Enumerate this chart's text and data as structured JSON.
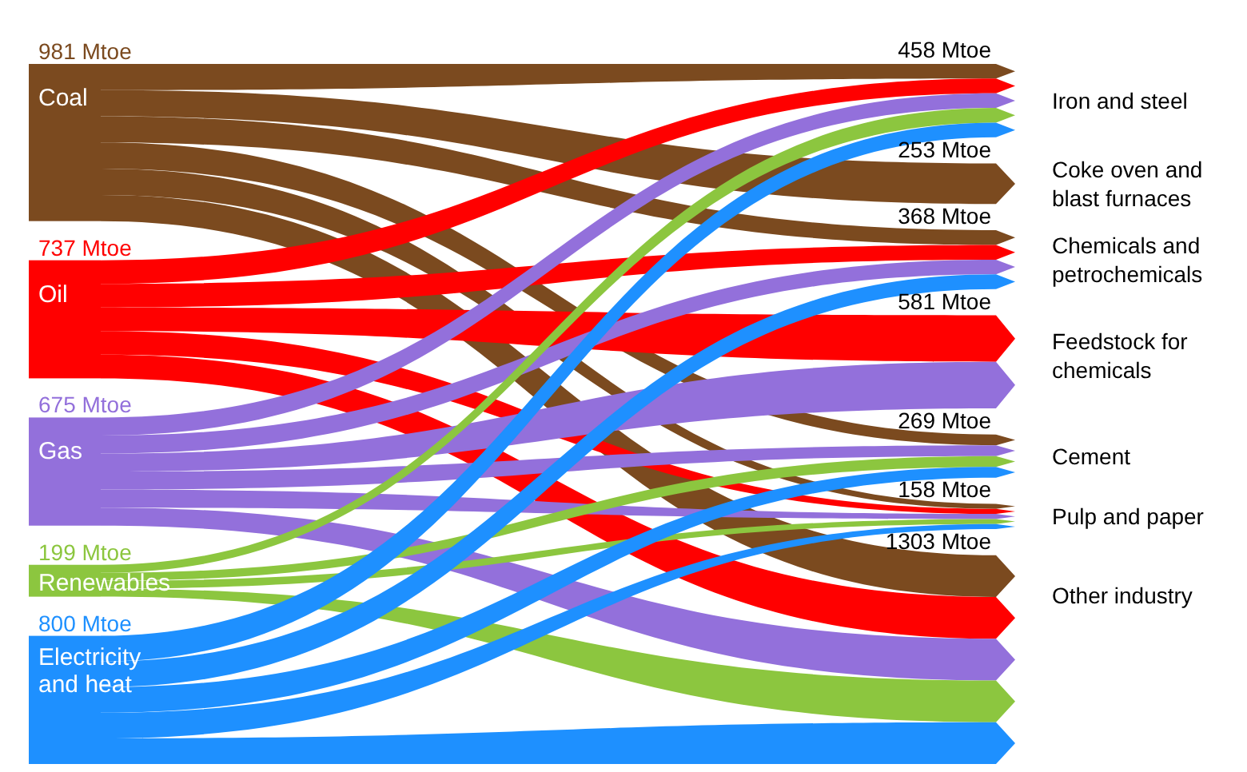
{
  "chart_data": {
    "type": "other",
    "categories": [
      "Coal",
      "Oil",
      "Gas",
      "Renewables",
      "Electricity and heat",
      "Iron and steel",
      "Coke oven and blast furnaces",
      "Chemicals and petrochemicals",
      "Feedstock for chemicals",
      "Cement",
      "Pulp and paper",
      "Other industry"
    ],
    "values": [
      981,
      737,
      675,
      199,
      800,
      458,
      253,
      368,
      581,
      269,
      158,
      1303
    ],
    "value_labels": [
      "981 Mtoe",
      "737 Mtoe",
      "675 Mtoe",
      "199 Mtoe",
      "800 Mtoe",
      "458 Mtoe",
      "253 Mtoe",
      "368 Mtoe",
      "581 Mtoe",
      "269 Mtoe",
      "158 Mtoe",
      "1303 Mtoe"
    ],
    "colors": [
      "#7b4a1f",
      "#ff0000",
      "#9370db",
      "#8cc63f",
      "#1e90ff",
      null,
      null,
      null,
      null,
      null,
      null,
      null
    ]
  }
}
